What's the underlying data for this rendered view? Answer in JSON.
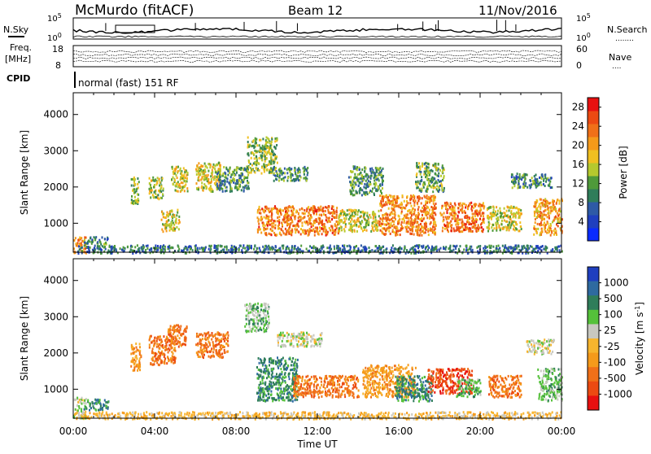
{
  "header": {
    "station": "McMurdo (fitACF)",
    "beam": "Beam 12",
    "date": "11/Nov/2016"
  },
  "top_panels": {
    "nsky_label": "N.Sky",
    "nsearch_label": "N.Search",
    "nsearch_dots": "........",
    "scale_top": "10^5",
    "scale_bottom": "10^0",
    "freq_label": "Freq.",
    "freq_unit": "[MHz]",
    "freq_ticks": [
      "18",
      "8"
    ],
    "nave_label": "Nave",
    "nave_dots": "....",
    "nave_ticks": [
      "60",
      "0"
    ],
    "cpid_label": "CPID",
    "cpid_text": "normal (fast) 151 RF"
  },
  "colors": {
    "power": [
      "#0a2bff",
      "#1f3fbf",
      "#2e5aa6",
      "#2f7d5a",
      "#4f9a3a",
      "#b5c92e",
      "#f0c020",
      "#f59a1a",
      "#f07018",
      "#ec4a12",
      "#e81010"
    ],
    "velocity": [
      "#e81010",
      "#ec4a12",
      "#f07018",
      "#f59a1a",
      "#f7b52e",
      "#c8c8c0",
      "#55c13a",
      "#2f7d5a",
      "#2e6aa0",
      "#1f3fbf"
    ]
  },
  "chart_data": [
    {
      "type": "heatmap",
      "name": "power",
      "ylabel": "Slant Range [km]",
      "xlabel": "",
      "y_ticks": [
        "1000",
        "2000",
        "3000",
        "4000"
      ],
      "ylim": [
        200,
        4600
      ],
      "colorbar_label": "Power [dB]",
      "colorbar_ticks": [
        "4",
        "8",
        "12",
        "16",
        "20",
        "24",
        "28"
      ],
      "colorbar_range": [
        0,
        30
      ],
      "x_ticks": [
        "00:00",
        "04:00",
        "08:00",
        "12:00",
        "16:00",
        "20:00",
        "00:00"
      ],
      "xlim_hours": [
        0,
        24
      ],
      "features": [
        {
          "t0": 0.0,
          "t1": 0.6,
          "r0": 200,
          "r1": 650,
          "level": 0.75
        },
        {
          "t0": 0.5,
          "t1": 1.7,
          "r0": 450,
          "r1": 650,
          "level": 0.3
        },
        {
          "t0": 2.8,
          "t1": 3.2,
          "r0": 1550,
          "r1": 2300,
          "level": 0.45
        },
        {
          "t0": 3.7,
          "t1": 4.4,
          "r0": 1700,
          "r1": 2300,
          "level": 0.5
        },
        {
          "t0": 4.3,
          "t1": 5.2,
          "r0": 800,
          "r1": 1400,
          "level": 0.55
        },
        {
          "t0": 4.8,
          "t1": 5.6,
          "r0": 1900,
          "r1": 2600,
          "level": 0.55
        },
        {
          "t0": 6.0,
          "t1": 7.2,
          "r0": 1900,
          "r1": 2700,
          "level": 0.55
        },
        {
          "t0": 7.0,
          "t1": 8.6,
          "r0": 1900,
          "r1": 2600,
          "level": 0.35
        },
        {
          "t0": 8.5,
          "t1": 10.0,
          "r0": 2400,
          "r1": 3400,
          "level": 0.45
        },
        {
          "t0": 9.0,
          "t1": 13.0,
          "r0": 700,
          "r1": 1500,
          "level": 0.78
        },
        {
          "t0": 9.8,
          "t1": 11.5,
          "r0": 2200,
          "r1": 2600,
          "level": 0.35
        },
        {
          "t0": 13.0,
          "t1": 15.0,
          "r0": 800,
          "r1": 1400,
          "level": 0.55
        },
        {
          "t0": 13.5,
          "t1": 15.2,
          "r0": 1800,
          "r1": 2600,
          "level": 0.35
        },
        {
          "t0": 15.0,
          "t1": 17.8,
          "r0": 700,
          "r1": 1800,
          "level": 0.75
        },
        {
          "t0": 16.8,
          "t1": 18.2,
          "r0": 1900,
          "r1": 2700,
          "level": 0.4
        },
        {
          "t0": 18.0,
          "t1": 20.2,
          "r0": 800,
          "r1": 1600,
          "level": 0.8
        },
        {
          "t0": 20.3,
          "t1": 22.0,
          "r0": 800,
          "r1": 1500,
          "level": 0.55
        },
        {
          "t0": 21.5,
          "t1": 23.5,
          "r0": 2000,
          "r1": 2400,
          "level": 0.3
        },
        {
          "t0": 22.6,
          "t1": 24.0,
          "r0": 700,
          "r1": 1700,
          "level": 0.7
        },
        {
          "t0": 0.0,
          "t1": 24.0,
          "r0": 200,
          "r1": 420,
          "level": 0.25
        }
      ]
    },
    {
      "type": "heatmap",
      "name": "velocity",
      "ylabel": "Slant Range [km]",
      "xlabel": "Time UT",
      "y_ticks": [
        "1000",
        "2000",
        "3000",
        "4000"
      ],
      "ylim": [
        200,
        4600
      ],
      "colorbar_label": "Velocity [m s^-1]",
      "colorbar_ticks": [
        "1000",
        "500",
        "100",
        "25",
        "-25",
        "-100",
        "-500",
        "-1000"
      ],
      "x_ticks": [
        "00:00",
        "04:00",
        "08:00",
        "12:00",
        "16:00",
        "20:00",
        "00:00"
      ],
      "xlim_hours": [
        0,
        24
      ],
      "features": [
        {
          "t0": 0.0,
          "t1": 0.6,
          "r0": 200,
          "r1": 800,
          "level": 5
        },
        {
          "t0": 0.5,
          "t1": 1.7,
          "r0": 450,
          "r1": 750,
          "level": 7
        },
        {
          "t0": 2.8,
          "t1": 3.3,
          "r0": 1550,
          "r1": 2300,
          "level": 3
        },
        {
          "t0": 3.7,
          "t1": 5.0,
          "r0": 1700,
          "r1": 2500,
          "level": 2
        },
        {
          "t0": 4.6,
          "t1": 5.6,
          "r0": 2200,
          "r1": 2800,
          "level": 2
        },
        {
          "t0": 6.0,
          "t1": 7.6,
          "r0": 1900,
          "r1": 2600,
          "level": 2
        },
        {
          "t0": 8.4,
          "t1": 9.6,
          "r0": 2600,
          "r1": 3400,
          "level": 6
        },
        {
          "t0": 10.0,
          "t1": 12.2,
          "r0": 2200,
          "r1": 2600,
          "level": 5
        },
        {
          "t0": 9.0,
          "t1": 11.0,
          "r0": 700,
          "r1": 1900,
          "level": 7
        },
        {
          "t0": 10.8,
          "t1": 14.0,
          "r0": 800,
          "r1": 1400,
          "level": 2
        },
        {
          "t0": 14.2,
          "t1": 16.8,
          "r0": 800,
          "r1": 1700,
          "level": 3
        },
        {
          "t0": 15.8,
          "t1": 17.6,
          "r0": 700,
          "r1": 1400,
          "level": 7
        },
        {
          "t0": 17.4,
          "t1": 19.6,
          "r0": 900,
          "r1": 1600,
          "level": 1
        },
        {
          "t0": 18.8,
          "t1": 20.0,
          "r0": 800,
          "r1": 1300,
          "level": 6
        },
        {
          "t0": 20.4,
          "t1": 22.0,
          "r0": 800,
          "r1": 1400,
          "level": 2
        },
        {
          "t0": 22.2,
          "t1": 23.6,
          "r0": 2000,
          "r1": 2400,
          "level": 5
        },
        {
          "t0": 22.8,
          "t1": 24.0,
          "r0": 700,
          "r1": 1600,
          "level": 6
        },
        {
          "t0": 0.0,
          "t1": 24.0,
          "r0": 200,
          "r1": 400,
          "level": 4
        }
      ]
    }
  ]
}
